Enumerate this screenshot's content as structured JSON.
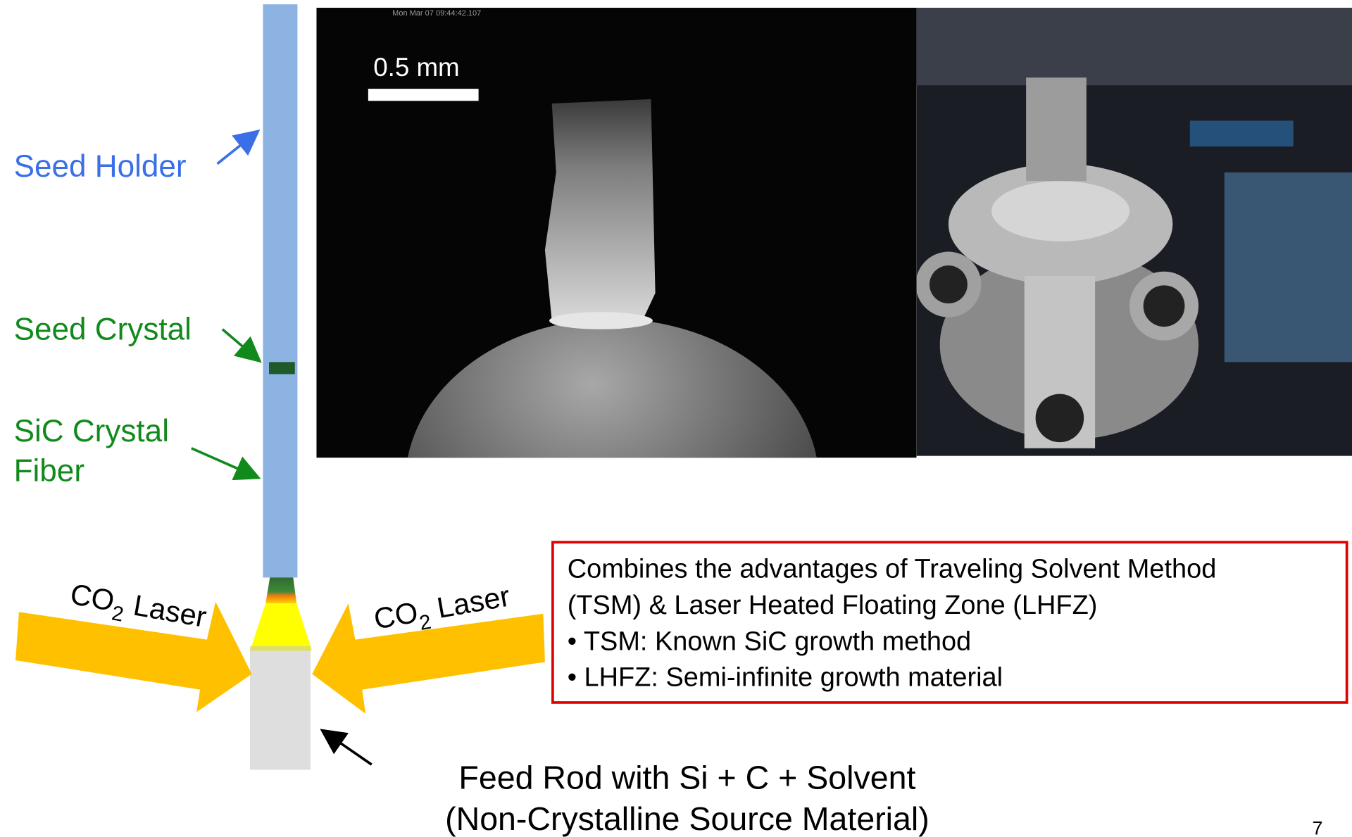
{
  "labels": {
    "seed_holder": "Seed Holder",
    "seed_crystal": "Seed Crystal",
    "fiber": [
      "SiC Crystal",
      "Fiber"
    ]
  },
  "lasers": [
    {
      "main": "CO",
      "sub": "2",
      "rest": "Laser"
    },
    {
      "main": "CO",
      "sub": "2",
      "rest": "Laser"
    }
  ],
  "camera": {
    "timestamp": "Mon Mar 07 09:44:42.107",
    "scale_bar": "0.5 mm"
  },
  "callout": {
    "lines": [
      "Combines the advantages of Traveling Solvent Method",
      "(TSM) & Laser Heated Floating Zone (LHFZ)",
      "• TSM: Known SiC growth method",
      "• LHFZ: Semi-infinite growth material"
    ]
  },
  "feed_rod": {
    "lines": [
      "Feed Rod with Si + C + Solvent",
      "(Non-Crystalline Source Material)"
    ]
  },
  "page_number": "7"
}
